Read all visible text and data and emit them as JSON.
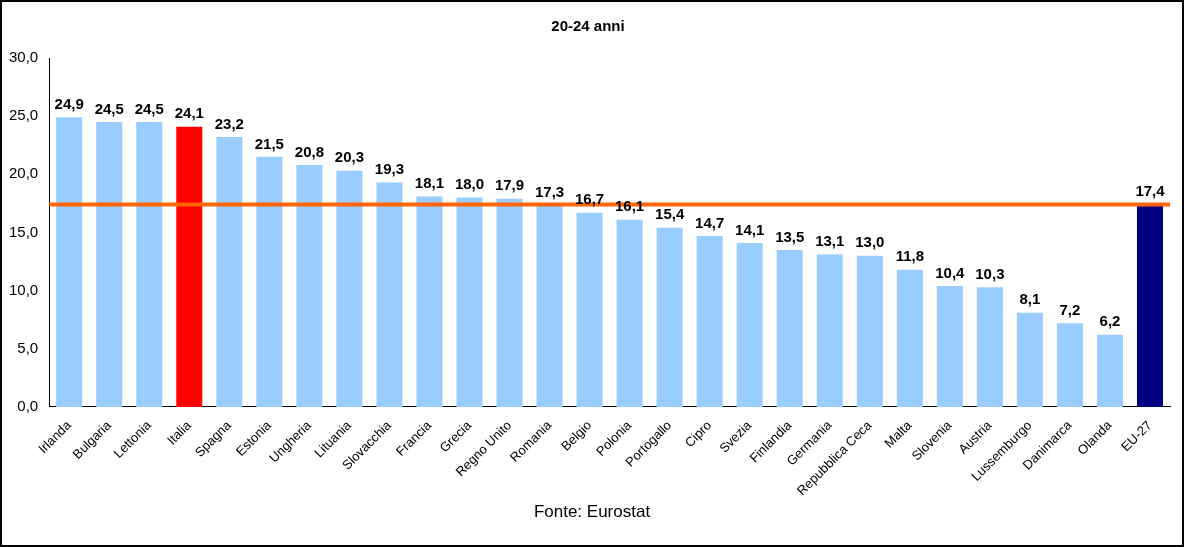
{
  "chart_data": {
    "type": "bar",
    "title": "20-24 anni",
    "annotations": [
      "Fonte: Eurostat"
    ],
    "categories": [
      "Irlanda",
      "Bulgaria",
      "Lettonia",
      "Italia",
      "Spagna",
      "Estonia",
      "Ungheria",
      "Lituania",
      "Slovacchia",
      "Francia",
      "Grecia",
      "Regno Unito",
      "Romania",
      "Belgio",
      "Polonia",
      "Portogallo",
      "Cipro",
      "Svezia",
      "Finlandia",
      "Germania",
      "Repubblica Ceca",
      "Malta",
      "Slovenia",
      "Austria",
      "Lussemburgo",
      "Danimarca",
      "Olanda",
      "EU-27"
    ],
    "values": [
      24.9,
      24.5,
      24.5,
      24.1,
      23.2,
      21.5,
      20.8,
      20.3,
      19.3,
      18.1,
      18.0,
      17.9,
      17.3,
      16.7,
      16.1,
      15.4,
      14.7,
      14.1,
      13.5,
      13.1,
      13.0,
      11.8,
      10.4,
      10.3,
      8.1,
      7.2,
      6.2,
      17.4
    ],
    "value_labels": [
      "24,9",
      "24,5",
      "24,5",
      "24,1",
      "23,2",
      "21,5",
      "20,8",
      "20,3",
      "19,3",
      "18,1",
      "18,0",
      "17,9",
      "17,3",
      "16,7",
      "16,1",
      "15,4",
      "14,7",
      "14,1",
      "13,5",
      "13,1",
      "13,0",
      "11,8",
      "10,4",
      "10,3",
      "8,1",
      "7,2",
      "6,2",
      "17,4"
    ],
    "colors": [
      "#99ccff",
      "#99ccff",
      "#99ccff",
      "#ff0000",
      "#99ccff",
      "#99ccff",
      "#99ccff",
      "#99ccff",
      "#99ccff",
      "#99ccff",
      "#99ccff",
      "#99ccff",
      "#99ccff",
      "#99ccff",
      "#99ccff",
      "#99ccff",
      "#99ccff",
      "#99ccff",
      "#99ccff",
      "#99ccff",
      "#99ccff",
      "#99ccff",
      "#99ccff",
      "#99ccff",
      "#99ccff",
      "#99ccff",
      "#99ccff",
      "#000080"
    ],
    "ylim": [
      0,
      30
    ],
    "yticks": [
      {
        "value": 0,
        "label": "0,0"
      },
      {
        "value": 5,
        "label": "5,0"
      },
      {
        "value": 10,
        "label": "10,0"
      },
      {
        "value": 15,
        "label": "15,0"
      },
      {
        "value": 20,
        "label": "20,0"
      },
      {
        "value": 25,
        "label": "25,0"
      },
      {
        "value": 30,
        "label": "30,0"
      }
    ],
    "ref_lines": [
      {
        "axis": "y",
        "value": 17.4,
        "color": "#ff6600"
      }
    ],
    "grid": false,
    "legend": false
  }
}
